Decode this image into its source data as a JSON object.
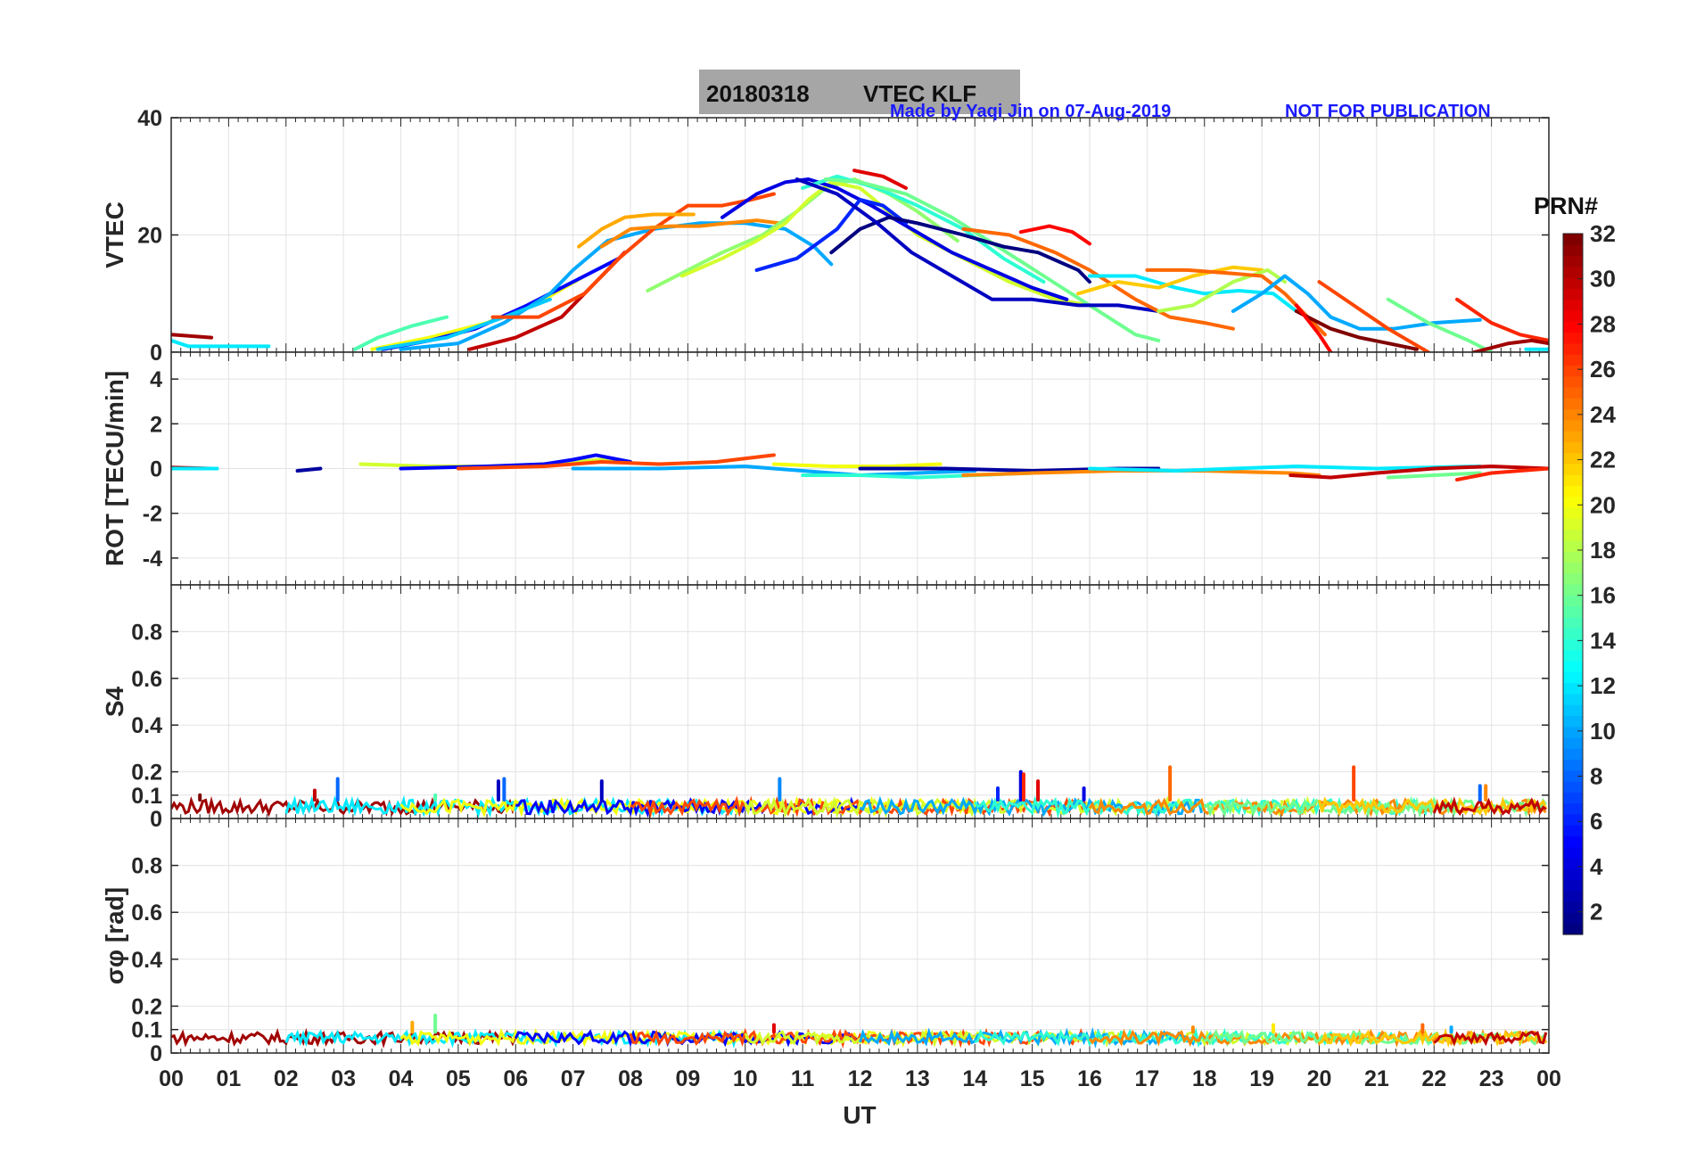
{
  "title": {
    "date": "20180318",
    "name": "VTEC  KLF"
  },
  "credit": "Made by Yaqi Jin on 07-Aug-2019",
  "notice": "NOT FOR PUBLICATION",
  "xlabel": "UT",
  "x_ticks": [
    "00",
    "01",
    "02",
    "03",
    "04",
    "05",
    "06",
    "07",
    "08",
    "09",
    "10",
    "11",
    "12",
    "13",
    "14",
    "15",
    "16",
    "17",
    "18",
    "19",
    "20",
    "21",
    "22",
    "23",
    "00"
  ],
  "colorbar": {
    "title": "PRN#",
    "ticks": [
      "2",
      "4",
      "6",
      "8",
      "10",
      "12",
      "14",
      "16",
      "18",
      "20",
      "22",
      "24",
      "26",
      "28",
      "30",
      "32"
    ],
    "range": [
      1,
      32
    ],
    "colormap": "jet"
  },
  "chart_data": [
    {
      "type": "line",
      "ylabel": "VTEC",
      "xlim": [
        0,
        24
      ],
      "ylim": [
        0,
        40
      ],
      "yticks": [
        "0",
        "20",
        "40"
      ],
      "grid": true,
      "series": [
        {
          "prn": 31,
          "x": [
            0.0,
            0.7
          ],
          "y": [
            3,
            2.5
          ]
        },
        {
          "prn": 12,
          "x": [
            0.0,
            0.3,
            1.0,
            1.7
          ],
          "y": [
            2,
            1,
            1,
            1
          ]
        },
        {
          "prn": 15,
          "x": [
            3.2,
            3.6,
            4.2,
            4.8
          ],
          "y": [
            0.5,
            2.5,
            4.5,
            6
          ]
        },
        {
          "prn": 20,
          "x": [
            3.5,
            4.5,
            5.5,
            6.5,
            7.2
          ],
          "y": [
            0.5,
            2.5,
            5,
            9,
            13
          ]
        },
        {
          "prn": 5,
          "x": [
            3.7,
            4.5,
            5.3,
            6.2,
            7.0,
            7.8
          ],
          "y": [
            0.5,
            2,
            4,
            8,
            12,
            16
          ]
        },
        {
          "prn": 10,
          "x": [
            4.0,
            5.0,
            5.8,
            6.6,
            7.0,
            7.6,
            8.4,
            9.2,
            10.0,
            10.7,
            11.2,
            11.5
          ],
          "y": [
            0.5,
            1.5,
            5,
            10,
            14,
            19,
            21,
            22,
            22,
            21,
            18,
            15
          ]
        },
        {
          "prn": 11,
          "x": [
            3.6,
            4.8,
            5.8,
            6.6
          ],
          "y": [
            0.5,
            2.5,
            6,
            9
          ]
        },
        {
          "prn": 30,
          "x": [
            5.2,
            6.0,
            6.8,
            7.4,
            7.9
          ],
          "y": [
            0.5,
            2.5,
            6,
            12,
            17
          ]
        },
        {
          "prn": 26,
          "x": [
            5.6,
            6.4,
            7.2,
            7.8,
            8.4,
            9.0,
            9.6,
            10.1,
            10.5
          ],
          "y": [
            6,
            6,
            10,
            16,
            21,
            25,
            25,
            26,
            27
          ]
        },
        {
          "prn": 23,
          "x": [
            7.1,
            7.5,
            7.9,
            8.4,
            8.9,
            9.1
          ],
          "y": [
            18,
            21,
            23,
            23.5,
            23.5,
            23.5
          ]
        },
        {
          "prn": 24,
          "x": [
            7.5,
            8.0,
            8.7,
            9.2,
            9.7,
            10.2,
            10.6
          ],
          "y": [
            18,
            21,
            21.5,
            21.5,
            22,
            22.5,
            22
          ]
        },
        {
          "prn": 17,
          "x": [
            8.3,
            9.0,
            9.6,
            10.3,
            10.9,
            11.4,
            11.9,
            12.5,
            13.0,
            13.7
          ],
          "y": [
            10.5,
            14,
            17,
            20,
            24,
            28,
            29.5,
            27,
            24,
            19
          ]
        },
        {
          "prn": 19,
          "x": [
            8.9,
            9.6,
            10.2,
            10.7,
            11.1,
            11.5,
            12.0,
            12.5,
            13.0,
            13.8,
            14.6,
            15.4,
            16.0
          ],
          "y": [
            13,
            16,
            19,
            22,
            26,
            29,
            28,
            24,
            20,
            16,
            12,
            9,
            8
          ]
        },
        {
          "prn": 4,
          "x": [
            9.6,
            10.2,
            10.7,
            11.1,
            11.6,
            12.2,
            12.9,
            13.6,
            14.3,
            15.0,
            15.6
          ],
          "y": [
            23,
            27,
            29,
            29.5,
            28,
            25,
            21,
            17,
            14,
            11,
            9
          ]
        },
        {
          "prn": 6,
          "x": [
            10.2,
            10.9,
            11.6,
            12.0,
            12.4,
            12.8
          ],
          "y": [
            14,
            16,
            21,
            26,
            25,
            22
          ]
        },
        {
          "prn": 14,
          "x": [
            11.0,
            11.6,
            12.3,
            13.0,
            13.8,
            14.5,
            15.2
          ],
          "y": [
            28,
            30,
            28,
            25,
            21,
            16,
            12
          ]
        },
        {
          "prn": 16,
          "x": [
            11.4,
            12.0,
            12.8,
            13.6,
            14.4,
            15.2,
            16.0,
            16.8,
            17.2
          ],
          "y": [
            29.5,
            29,
            27,
            23,
            18,
            13,
            8,
            3,
            2
          ]
        },
        {
          "prn": 1,
          "x": [
            11.5,
            12.0,
            12.5,
            13.0,
            13.8,
            14.5,
            15.1,
            15.8,
            16.0
          ],
          "y": [
            17,
            21,
            23,
            22,
            20,
            18,
            17,
            14,
            12
          ]
        },
        {
          "prn": 3,
          "x": [
            10.9,
            11.6,
            12.3,
            12.9,
            13.6,
            14.3,
            15.0,
            15.8,
            16.5,
            17.2
          ],
          "y": [
            29.5,
            27,
            22,
            17,
            13,
            9,
            9,
            8,
            8,
            7
          ]
        },
        {
          "prn": 29,
          "x": [
            11.9,
            12.4,
            12.8
          ],
          "y": [
            31,
            30,
            28
          ]
        },
        {
          "prn": 28,
          "x": [
            14.8,
            15.3,
            15.7,
            16.0
          ],
          "y": [
            20.5,
            21.5,
            20.5,
            18.5
          ]
        },
        {
          "prn": 25,
          "x": [
            13.8,
            14.6,
            15.4,
            16.0,
            16.8,
            17.4,
            18.0,
            18.5
          ],
          "y": [
            21,
            20,
            17,
            14,
            9,
            6,
            5,
            4
          ]
        },
        {
          "prn": 12,
          "x": [
            16.0,
            16.8,
            17.5,
            18.0,
            18.6,
            19.2,
            19.6
          ],
          "y": [
            13,
            13,
            11,
            10,
            10.5,
            10,
            7
          ]
        },
        {
          "prn": 22,
          "x": [
            15.8,
            16.5,
            17.2,
            17.8,
            18.5,
            19.0
          ],
          "y": [
            10,
            12,
            11,
            13,
            14.5,
            14
          ]
        },
        {
          "prn": 18,
          "x": [
            17.2,
            17.8,
            18.5,
            19.1,
            19.4
          ],
          "y": [
            7,
            8,
            12,
            14,
            12
          ]
        },
        {
          "prn": 25,
          "x": [
            17.0,
            17.7,
            18.4,
            19.0,
            19.4,
            19.8,
            20.1
          ],
          "y": [
            14,
            14,
            13.5,
            13,
            10,
            6,
            3
          ]
        },
        {
          "prn": 10,
          "x": [
            18.5,
            19.0,
            19.4,
            19.8,
            20.2,
            20.7,
            21.3,
            22.0,
            22.8
          ],
          "y": [
            7,
            10,
            13,
            10,
            6,
            4,
            4,
            5,
            5.5
          ]
        },
        {
          "prn": 32,
          "x": [
            19.6,
            20.2,
            20.7,
            21.2,
            21.7
          ],
          "y": [
            7,
            4,
            2.5,
            1.5,
            0.5
          ]
        },
        {
          "prn": 26,
          "x": [
            20.0,
            20.6,
            21.2,
            21.9
          ],
          "y": [
            12,
            8,
            4,
            0
          ]
        },
        {
          "prn": 28,
          "x": [
            19.6,
            20.0,
            20.2
          ],
          "y": [
            8,
            3,
            0
          ]
        },
        {
          "prn": 16,
          "x": [
            21.2,
            21.9,
            22.6,
            23.0
          ],
          "y": [
            9,
            5,
            2,
            0
          ]
        },
        {
          "prn": 27,
          "x": [
            22.4,
            23.0,
            23.5,
            24.0
          ],
          "y": [
            9,
            5,
            3,
            2
          ]
        },
        {
          "prn": 31,
          "x": [
            22.7,
            23.3,
            23.7,
            24.0
          ],
          "y": [
            0,
            1.5,
            2,
            1.5
          ]
        },
        {
          "prn": 12,
          "x": [
            23.6,
            24.0
          ],
          "y": [
            0.5,
            0.5
          ]
        }
      ]
    },
    {
      "type": "line",
      "ylabel": "ROT [TECU/min]",
      "xlim": [
        0,
        24
      ],
      "ylim": [
        -5.2,
        5.2
      ],
      "yticks": [
        "-4",
        "-2",
        "0",
        "2",
        "4"
      ],
      "grid": true,
      "series": [
        {
          "prn": 31,
          "x": [
            0.0,
            0.7
          ],
          "y": [
            0.05,
            0.0
          ]
        },
        {
          "prn": 12,
          "x": [
            0.0,
            0.8
          ],
          "y": [
            0.0,
            0.0
          ]
        },
        {
          "prn": 2,
          "x": [
            2.2,
            2.6
          ],
          "y": [
            -0.1,
            0.0
          ]
        },
        {
          "prn": 19,
          "x": [
            3.3,
            4.5,
            5.5,
            6.5,
            7.0,
            7.5,
            8.0
          ],
          "y": [
            0.2,
            0.1,
            0.1,
            0.2,
            0.3,
            0.4,
            0.3
          ]
        },
        {
          "prn": 5,
          "x": [
            4.0,
            5.5,
            6.5,
            7.0,
            7.4,
            8.0
          ],
          "y": [
            0.0,
            0.1,
            0.2,
            0.4,
            0.6,
            0.3
          ]
        },
        {
          "prn": 26,
          "x": [
            5.0,
            6.5,
            7.5,
            8.5,
            9.5,
            10.5
          ],
          "y": [
            0.0,
            0.1,
            0.3,
            0.2,
            0.3,
            0.6
          ]
        },
        {
          "prn": 10,
          "x": [
            7.0,
            8.5,
            10.0,
            11.0,
            12.0,
            13.0,
            14.0
          ],
          "y": [
            0.0,
            0.0,
            0.1,
            -0.1,
            -0.3,
            -0.2,
            -0.1
          ]
        },
        {
          "prn": 14,
          "x": [
            11.0,
            12.0,
            13.0,
            14.0,
            15.0
          ],
          "y": [
            -0.3,
            -0.3,
            -0.4,
            -0.3,
            -0.2
          ]
        },
        {
          "prn": 20,
          "x": [
            10.5,
            11.5,
            12.5,
            13.4
          ],
          "y": [
            0.2,
            0.1,
            0.1,
            0.2
          ]
        },
        {
          "prn": 2,
          "x": [
            12.0,
            13.5,
            15.0,
            16.5,
            17.2
          ],
          "y": [
            0.0,
            0.0,
            -0.1,
            0.0,
            0.0
          ]
        },
        {
          "prn": 24,
          "x": [
            13.8,
            15.0,
            16.5,
            18.0,
            19.5,
            20.0
          ],
          "y": [
            -0.3,
            -0.2,
            -0.1,
            -0.1,
            -0.2,
            -0.3
          ]
        },
        {
          "prn": 12,
          "x": [
            16.0,
            17.5,
            18.5,
            19.6,
            21.0,
            22.8
          ],
          "y": [
            0.0,
            -0.1,
            0.0,
            0.1,
            0.0,
            0.1
          ]
        },
        {
          "prn": 30,
          "x": [
            19.5,
            20.2,
            21.0,
            22.0,
            23.0,
            24.0
          ],
          "y": [
            -0.3,
            -0.4,
            -0.2,
            0.0,
            0.1,
            0.0
          ]
        },
        {
          "prn": 16,
          "x": [
            21.2,
            22.0,
            22.8
          ],
          "y": [
            -0.4,
            -0.3,
            -0.2
          ]
        },
        {
          "prn": 27,
          "x": [
            22.4,
            23.0,
            24.0
          ],
          "y": [
            -0.5,
            -0.2,
            0.0
          ]
        }
      ]
    },
    {
      "type": "line",
      "ylabel": "S4",
      "xlim": [
        0,
        24
      ],
      "ylim": [
        0,
        1
      ],
      "yticks": [
        "0",
        "0.1",
        "0.2",
        "0.4",
        "0.6",
        "0.8"
      ],
      "grid": true,
      "spikes": [
        {
          "prn": 32,
          "x": 0.5,
          "y": 0.1
        },
        {
          "prn": 30,
          "x": 2.5,
          "y": 0.12
        },
        {
          "prn": 8,
          "x": 2.9,
          "y": 0.17
        },
        {
          "prn": 15,
          "x": 4.6,
          "y": 0.1
        },
        {
          "prn": 3,
          "x": 5.7,
          "y": 0.16
        },
        {
          "prn": 8,
          "x": 5.8,
          "y": 0.17
        },
        {
          "prn": 3,
          "x": 7.5,
          "y": 0.16
        },
        {
          "prn": 9,
          "x": 10.6,
          "y": 0.17
        },
        {
          "prn": 4,
          "x": 14.8,
          "y": 0.2
        },
        {
          "prn": 27,
          "x": 14.85,
          "y": 0.19
        },
        {
          "prn": 29,
          "x": 15.1,
          "y": 0.16
        },
        {
          "prn": 6,
          "x": 14.4,
          "y": 0.13
        },
        {
          "prn": 4,
          "x": 15.9,
          "y": 0.13
        },
        {
          "prn": 25,
          "x": 17.4,
          "y": 0.22
        },
        {
          "prn": 26,
          "x": 20.6,
          "y": 0.22
        },
        {
          "prn": 8,
          "x": 22.8,
          "y": 0.14
        },
        {
          "prn": 24,
          "x": 22.9,
          "y": 0.14
        }
      ],
      "baseline": {
        "min": 0.02,
        "max": 0.08
      }
    },
    {
      "type": "line",
      "ylabel": "σφ [rad]",
      "xlim": [
        0,
        24
      ],
      "ylim": [
        0,
        1
      ],
      "yticks": [
        "0",
        "0.1",
        "0.2",
        "0.4",
        "0.6",
        "0.8"
      ],
      "grid": true,
      "spikes": [
        {
          "prn": 16,
          "x": 4.6,
          "y": 0.16
        },
        {
          "prn": 23,
          "x": 4.2,
          "y": 0.13
        },
        {
          "prn": 29,
          "x": 10.5,
          "y": 0.12
        },
        {
          "prn": 21,
          "x": 19.2,
          "y": 0.12
        },
        {
          "prn": 25,
          "x": 21.8,
          "y": 0.12
        },
        {
          "prn": 24,
          "x": 17.8,
          "y": 0.11
        },
        {
          "prn": 10,
          "x": 22.3,
          "y": 0.11
        }
      ],
      "baseline": {
        "min": 0.04,
        "max": 0.09
      }
    }
  ]
}
